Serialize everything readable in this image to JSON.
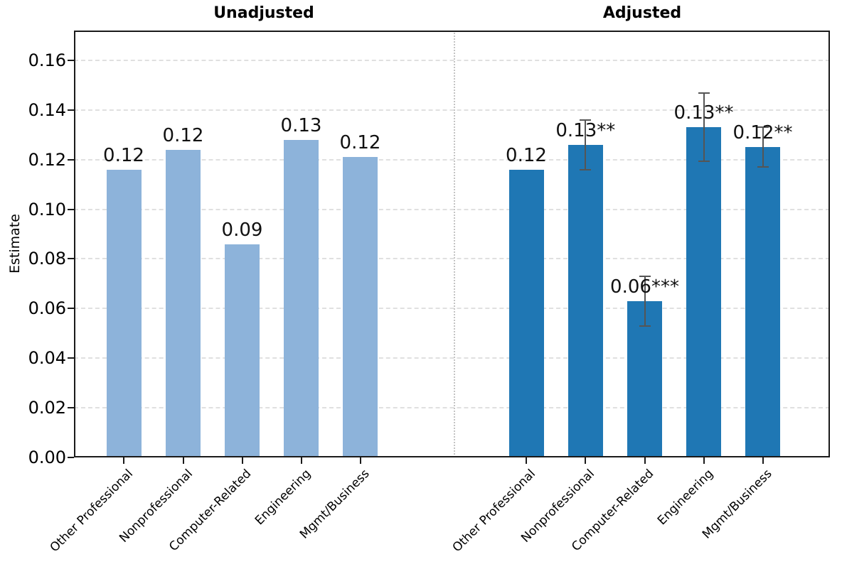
{
  "chart_data": {
    "type": "bar",
    "title": "",
    "ylabel": "Estimate",
    "xlabel": "",
    "categories": [
      "Other Professional",
      "Nonprofessional",
      "Computer-Related",
      "Engineering",
      "Mgmt/Business"
    ],
    "panels": [
      {
        "title": "Unadjusted",
        "bar_color": "#8DB3DA",
        "values": [
          0.116,
          0.124,
          0.086,
          0.128,
          0.121
        ],
        "bar_labels": [
          "0.12",
          "0.12",
          "0.09",
          "0.13",
          "0.12"
        ],
        "errors": [
          null,
          null,
          null,
          null,
          null
        ]
      },
      {
        "title": "Adjusted",
        "bar_color": "#1F77B4",
        "values": [
          0.116,
          0.126,
          0.063,
          0.133,
          0.125
        ],
        "bar_labels": [
          "0.12",
          "0.13**",
          "0.06***",
          "0.13**",
          "0.12**"
        ],
        "errors": [
          null,
          0.01,
          0.01,
          0.0137,
          0.008
        ]
      }
    ],
    "ylim": [
      0,
      0.172
    ],
    "yticks": [
      "0.00",
      "0.02",
      "0.04",
      "0.06",
      "0.08",
      "0.10",
      "0.12",
      "0.14",
      "0.16"
    ],
    "grid": "horizontal-dashed",
    "legend": "none",
    "separator": "dotted-vertical-line-between-panels",
    "error_bar_color": "#555555",
    "frame_color": "#1a1a1a",
    "grid_color": "#e0e0e0"
  }
}
